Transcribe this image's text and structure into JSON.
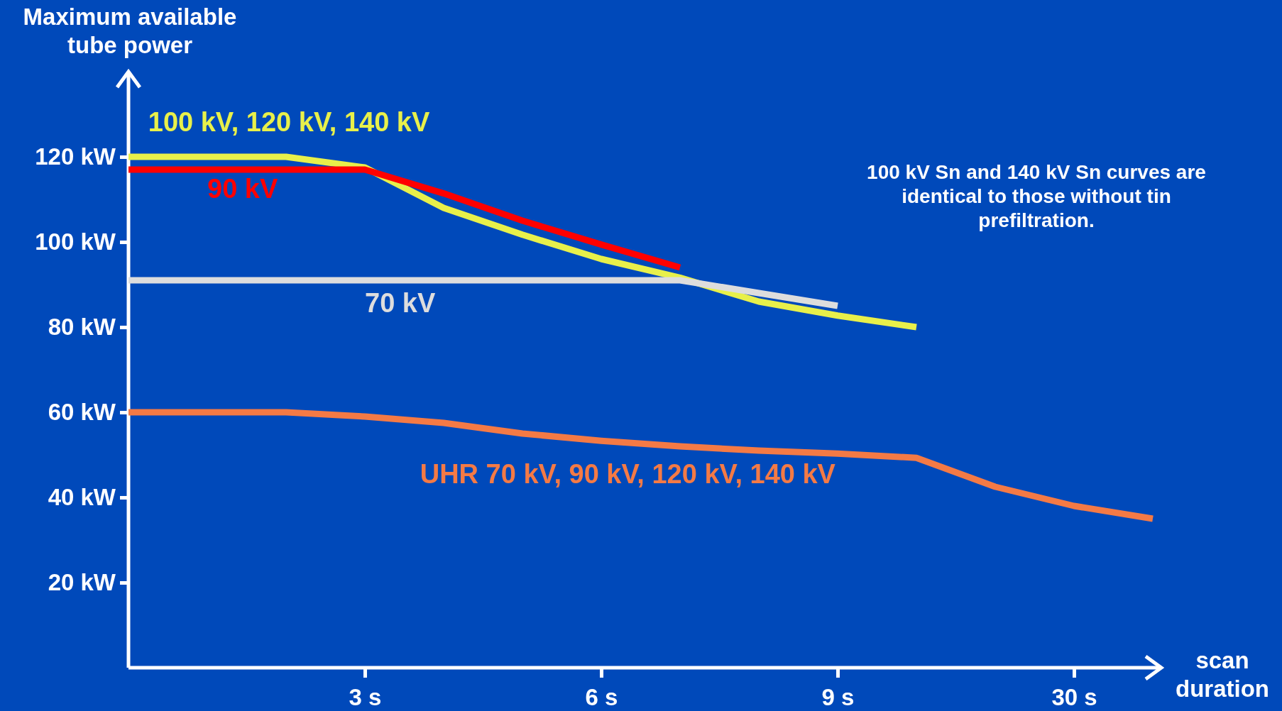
{
  "chart_data": {
    "type": "line",
    "xlabel": "scan duration",
    "ylabel": "Maximum available tube power",
    "categories": [
      null,
      null,
      null,
      "3 s",
      null,
      null,
      "6 s",
      null,
      null,
      "9 s",
      null,
      null,
      "30 s",
      null
    ],
    "ylim": [
      0,
      140
    ],
    "yticks": [
      {
        "value": 20,
        "label": "20 kW"
      },
      {
        "value": 40,
        "label": "40 kW"
      },
      {
        "value": 60,
        "label": "60 kW"
      },
      {
        "value": 80,
        "label": "80 kW"
      },
      {
        "value": 100,
        "label": "100 kW"
      },
      {
        "value": 120,
        "label": "120 kW"
      }
    ],
    "grid": false,
    "legend": false,
    "marker": "none",
    "line_style": "solid",
    "series": [
      {
        "name": "100 kV, 120 kV, 140 kV",
        "color": "#e8f04a",
        "values": [
          120,
          120,
          120,
          117.5,
          108,
          101.7,
          96,
          91.6,
          86,
          82.7,
          80,
          null,
          null,
          null
        ]
      },
      {
        "name": "90 kV",
        "color": "#ff0000",
        "values": [
          117,
          117,
          117,
          117,
          111.4,
          105,
          99.4,
          94,
          null,
          null,
          null,
          null,
          null,
          null
        ]
      },
      {
        "name": "70 kV",
        "color": "#dddddd",
        "values": [
          91,
          91,
          91,
          91,
          91,
          91,
          91,
          91,
          88,
          85,
          null,
          null,
          null,
          null
        ]
      },
      {
        "name": "UHR 70 kV, 90 kV, 120 kV, 140 kV",
        "color": "#f47a45",
        "values": [
          60,
          60,
          60,
          59,
          57.5,
          55,
          53.3,
          52,
          51,
          50.3,
          49.3,
          42.5,
          38,
          35
        ]
      }
    ],
    "annotations": [
      "100 kV Sn and 140 kV Sn curves are identical to those without tin prefiltration."
    ]
  }
}
